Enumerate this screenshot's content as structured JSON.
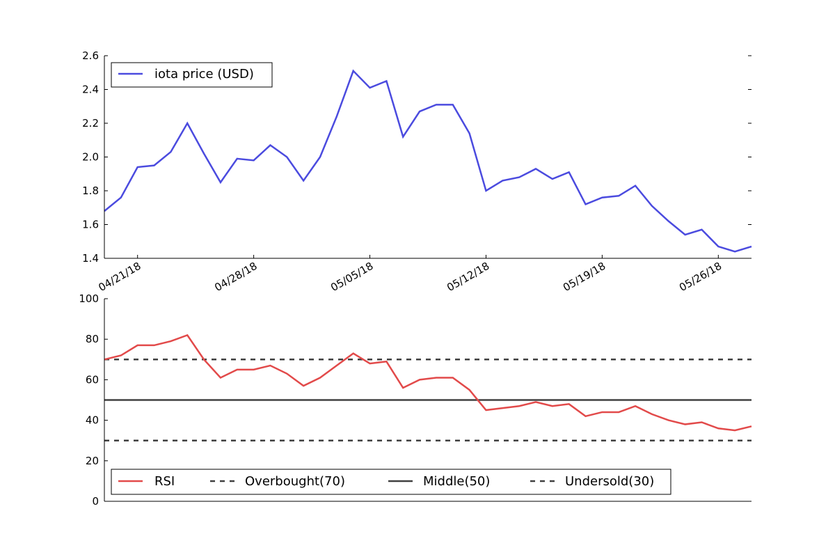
{
  "chart_data": [
    {
      "type": "line",
      "panel": "price",
      "x_start": "2018-04-19",
      "x_step_days": 1,
      "x_tick_labels": [
        "04/21/18",
        "04/28/18",
        "05/05/18",
        "05/12/18",
        "05/19/18",
        "05/26/18"
      ],
      "x_tick_dates": [
        "2018-04-21",
        "2018-04-28",
        "2018-05-05",
        "2018-05-12",
        "2018-05-19",
        "2018-05-26"
      ],
      "ylim": [
        1.4,
        2.6
      ],
      "y_ticks": [
        1.4,
        1.6,
        1.8,
        2.0,
        2.2,
        2.4,
        2.6
      ],
      "y_tick_labels": [
        "1.4",
        "1.6",
        "1.8",
        "2.0",
        "2.2",
        "2.4",
        "2.6"
      ],
      "legend_position": "top-left",
      "series": [
        {
          "name": "iota price (USD)",
          "color": "#4b4bdf",
          "values": [
            1.68,
            1.76,
            1.94,
            1.95,
            2.03,
            2.2,
            2.02,
            1.85,
            1.99,
            1.98,
            2.07,
            2.0,
            1.86,
            2.0,
            2.24,
            2.51,
            2.41,
            2.45,
            2.12,
            2.27,
            2.31,
            2.31,
            2.14,
            1.8,
            1.86,
            1.88,
            1.93,
            1.87,
            1.91,
            1.72,
            1.76,
            1.77,
            1.83,
            1.71,
            1.62,
            1.54,
            1.57,
            1.47,
            1.44,
            1.47
          ]
        }
      ]
    },
    {
      "type": "line",
      "panel": "rsi",
      "ylim": [
        0,
        100
      ],
      "y_ticks": [
        0,
        20,
        40,
        60,
        80,
        100
      ],
      "y_tick_labels": [
        "0",
        "20",
        "40",
        "60",
        "80",
        "100"
      ],
      "legend_position": "bottom-left",
      "series": [
        {
          "name": "RSI",
          "color": "#e24a4a",
          "values": [
            70,
            72,
            77,
            77,
            79,
            82,
            70,
            61,
            65,
            65,
            67,
            63,
            57,
            61,
            67,
            73,
            68,
            69,
            56,
            60,
            61,
            61,
            55,
            45,
            46,
            47,
            49,
            47,
            48,
            42,
            44,
            44,
            47,
            43,
            40,
            38,
            39,
            36,
            35,
            37
          ]
        }
      ],
      "reference_lines": [
        {
          "name": "Overbought(70)",
          "value": 70,
          "style": "dashed",
          "color": "#404040"
        },
        {
          "name": "Middle(50)",
          "value": 50,
          "style": "solid",
          "color": "#404040"
        },
        {
          "name": "Undersold(30)",
          "value": 30,
          "style": "dashed",
          "color": "#404040"
        }
      ]
    }
  ]
}
